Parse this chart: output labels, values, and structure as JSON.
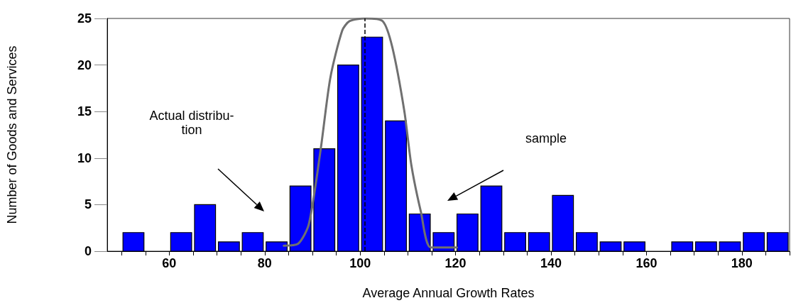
{
  "chart_data": {
    "type": "histogram",
    "xlabel": "Average Annual Growth Rates",
    "ylabel": "Number of Goods and Services",
    "bins": [
      50,
      55,
      60,
      65,
      70,
      75,
      80,
      85,
      90,
      95,
      100,
      105,
      110,
      115,
      120,
      125,
      130,
      135,
      140,
      145,
      150,
      155,
      160,
      165,
      170,
      175,
      180,
      185,
      190
    ],
    "values": [
      2,
      0,
      2,
      5,
      1,
      2,
      1,
      7,
      11,
      20,
      23,
      14,
      4,
      2,
      4,
      7,
      2,
      2,
      6,
      2,
      1,
      1,
      0,
      1,
      1,
      1,
      2,
      2
    ],
    "color": "#0000ff",
    "series": [
      {
        "type": "line",
        "color": "#707070",
        "x": [
          84,
          87,
          89.25,
          91.75,
          93.75,
          96.25,
          97.75,
          101,
          104.75,
          106.75,
          109.25,
          110.75,
          112.75,
          114.8,
          120.3
        ],
        "values": [
          0.6,
          0.8,
          2.9,
          11,
          18.6,
          23.7,
          24.7,
          25,
          24.7,
          21.9,
          15.1,
          9.2,
          4.2,
          0.4,
          0.4
        ]
      }
    ],
    "xlim": [
      47,
      190
    ],
    "xticks": [
      {
        "value": 50,
        "label": null
      },
      {
        "value": 55,
        "label": null
      },
      60,
      {
        "value": 65,
        "label": null
      },
      {
        "value": 70,
        "label": null
      },
      {
        "value": 75,
        "label": null
      },
      80,
      {
        "value": 85,
        "label": null
      },
      {
        "value": 90,
        "label": null
      },
      {
        "value": 95,
        "label": null
      },
      100,
      {
        "value": 105,
        "label": null
      },
      {
        "value": 110,
        "label": null
      },
      {
        "value": 115,
        "label": null
      },
      120,
      {
        "value": 125,
        "label": null
      },
      {
        "value": 130,
        "label": null
      },
      {
        "value": 135,
        "label": null
      },
      140,
      {
        "value": 145,
        "label": null
      },
      {
        "value": 150,
        "label": null
      },
      {
        "value": 155,
        "label": null
      },
      160,
      {
        "value": 165,
        "label": null
      },
      {
        "value": 170,
        "label": null
      },
      {
        "value": 175,
        "label": null
      },
      180,
      {
        "value": 185,
        "label": null
      },
      {
        "value": 190,
        "label": null
      }
    ],
    "ylim": [
      0,
      25
    ],
    "yticks": [
      0,
      5,
      10,
      15,
      20,
      25
    ],
    "ref_lines": [
      {
        "axis": "x",
        "value": 101,
        "line_style": "dashed",
        "color": "#000000"
      }
    ],
    "annotations": [
      "Actual distribu-\ntion",
      "sample"
    ],
    "grid": false
  }
}
